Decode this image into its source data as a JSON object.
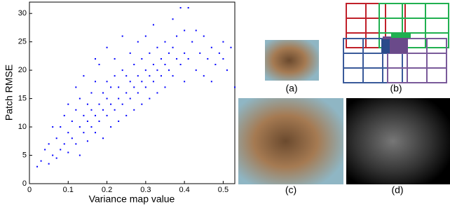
{
  "chart_data": {
    "type": "scatter",
    "xlabel": "Variance map value",
    "ylabel": "Patch RMSE",
    "color": "#0000ff",
    "xlim": [
      0,
      0.53
    ],
    "ylim": [
      0,
      32
    ],
    "xticks": [
      0,
      0.1,
      0.2,
      0.3,
      0.4,
      0.5
    ],
    "yticks": [
      0,
      5,
      10,
      15,
      20,
      25,
      30
    ],
    "x": [
      0.03,
      0.04,
      0.05,
      0.05,
      0.06,
      0.07,
      0.07,
      0.08,
      0.08,
      0.09,
      0.09,
      0.1,
      0.1,
      0.1,
      0.11,
      0.11,
      0.12,
      0.12,
      0.12,
      0.13,
      0.13,
      0.14,
      0.14,
      0.14,
      0.15,
      0.15,
      0.15,
      0.16,
      0.16,
      0.16,
      0.17,
      0.17,
      0.17,
      0.18,
      0.18,
      0.18,
      0.19,
      0.19,
      0.19,
      0.2,
      0.2,
      0.2,
      0.21,
      0.21,
      0.21,
      0.22,
      0.22,
      0.22,
      0.23,
      0.23,
      0.23,
      0.24,
      0.24,
      0.24,
      0.25,
      0.25,
      0.25,
      0.26,
      0.26,
      0.26,
      0.27,
      0.27,
      0.27,
      0.28,
      0.28,
      0.28,
      0.29,
      0.29,
      0.29,
      0.3,
      0.3,
      0.3,
      0.31,
      0.31,
      0.31,
      0.32,
      0.32,
      0.32,
      0.33,
      0.33,
      0.33,
      0.34,
      0.34,
      0.35,
      0.35,
      0.35,
      0.36,
      0.36,
      0.37,
      0.37,
      0.37,
      0.38,
      0.38,
      0.39,
      0.39,
      0.4,
      0.4,
      0.4,
      0.41,
      0.41,
      0.42,
      0.43,
      0.43,
      0.44,
      0.45,
      0.45,
      0.46,
      0.47,
      0.47,
      0.48,
      0.49,
      0.5,
      0.5,
      0.51,
      0.52,
      0.53,
      0.02,
      0.06,
      0.13,
      0.2,
      0.17
    ],
    "values": [
      4,
      6,
      3.5,
      7,
      5,
      8,
      4.5,
      6,
      10,
      7,
      12,
      9,
      5.5,
      14,
      8,
      11,
      13,
      7,
      17,
      10,
      15,
      9,
      12,
      19,
      11,
      14,
      7.5,
      13,
      16,
      10,
      12,
      18,
      9,
      14,
      11,
      21,
      13,
      16,
      8,
      15,
      12,
      18,
      10,
      17,
      14,
      13,
      19,
      22,
      15,
      11,
      17,
      20,
      14,
      26,
      16,
      12,
      19,
      18,
      23,
      15,
      17,
      21,
      13,
      19,
      16,
      25,
      18,
      22,
      14,
      20,
      17,
      26,
      19,
      23,
      15,
      21,
      18,
      28,
      20,
      24,
      16,
      22,
      19,
      25,
      21,
      17,
      23,
      20,
      24,
      19,
      29,
      22,
      26,
      21,
      31,
      23,
      18,
      27,
      31,
      22,
      25,
      20,
      27,
      23,
      26,
      19,
      22,
      24,
      18,
      21,
      23,
      25,
      22,
      20,
      24,
      17,
      3,
      10,
      5,
      24,
      22
    ]
  },
  "panel_labels": [
    "(a)",
    "(b)",
    "(c)",
    "(d)"
  ]
}
